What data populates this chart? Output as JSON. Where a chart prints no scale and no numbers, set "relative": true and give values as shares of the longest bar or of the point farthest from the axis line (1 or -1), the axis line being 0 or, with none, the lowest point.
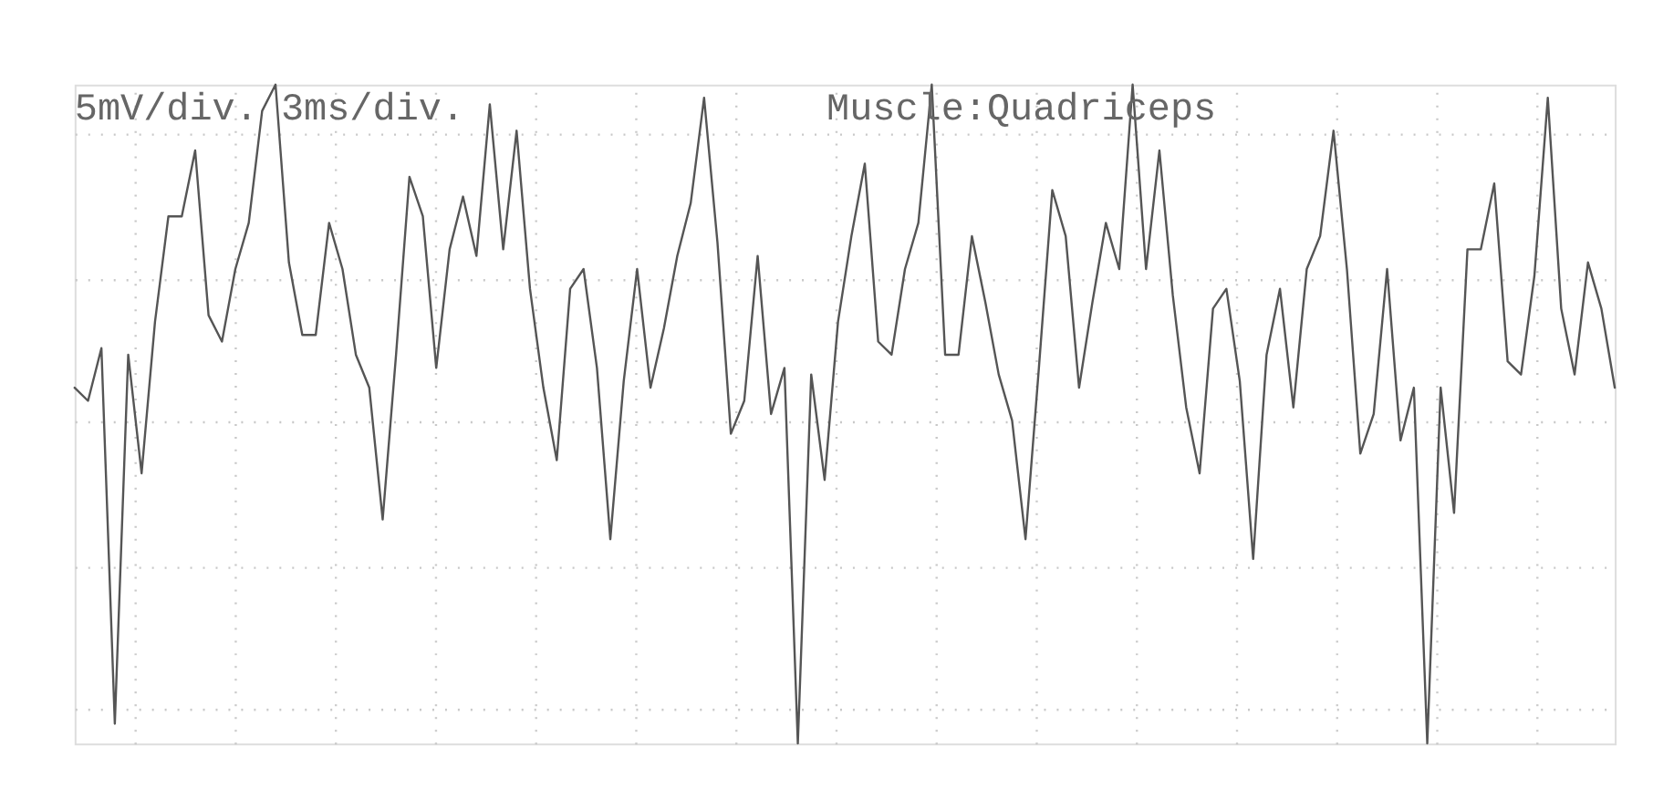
{
  "chart_data": {
    "type": "line",
    "relative": true,
    "color": "#555555",
    "line_style": "solid",
    "marker": "none",
    "grid": true,
    "tick_labels": false,
    "legend": false,
    "annotations": [
      "5mV/div. 3ms/div.",
      "Muscle:Quadriceps"
    ],
    "categories": [
      null,
      null,
      null,
      null,
      null,
      null,
      null,
      null,
      null,
      null,
      null,
      null,
      null,
      null,
      null,
      null,
      null,
      null,
      null,
      null,
      null,
      null,
      null,
      null,
      null,
      null,
      null,
      null,
      null,
      null,
      null,
      null,
      null,
      null,
      null,
      null,
      null,
      null,
      null,
      null,
      null,
      null,
      null,
      null,
      null,
      null,
      null,
      null,
      null,
      null,
      null,
      null,
      null,
      null,
      null,
      null,
      null,
      null,
      null,
      null,
      null,
      null,
      null,
      null,
      null,
      null,
      null,
      null,
      null,
      null,
      null,
      null,
      null,
      null,
      null,
      null,
      null,
      null,
      null,
      null,
      null,
      null,
      null,
      null,
      null,
      null,
      null,
      null,
      null,
      null,
      null,
      null,
      null,
      null,
      null,
      null,
      null,
      null,
      null,
      null,
      null,
      null,
      null,
      null,
      null,
      null,
      null,
      null,
      null,
      null,
      null,
      null,
      null,
      null,
      null,
      null
    ],
    "values": [
      0.54,
      0.52,
      0.6,
      0.03,
      0.59,
      0.41,
      0.64,
      0.8,
      0.8,
      0.9,
      0.65,
      0.61,
      0.72,
      0.79,
      0.96,
      1,
      0.73,
      0.62,
      0.62,
      0.79,
      0.72,
      0.59,
      0.54,
      0.34,
      0.59,
      0.86,
      0.8,
      0.57,
      0.75,
      0.83,
      0.74,
      0.97,
      0.75,
      0.93,
      0.69,
      0.54,
      0.43,
      0.69,
      0.72,
      0.57,
      0.31,
      0.55,
      0.72,
      0.54,
      0.63,
      0.74,
      0.82,
      0.98,
      0.76,
      0.47,
      0.52,
      0.74,
      0.5,
      0.57,
      0.0,
      0.56,
      0.4,
      0.64,
      0.77,
      0.88,
      0.61,
      0.59,
      0.72,
      0.79,
      1,
      0.59,
      0.59,
      0.77,
      0.67,
      0.56,
      0.49,
      0.31,
      0.57,
      0.84,
      0.77,
      0.54,
      0.67,
      0.79,
      0.72,
      1,
      0.72,
      0.9,
      0.68,
      0.51,
      0.41,
      0.66,
      0.69,
      0.55,
      0.28,
      0.59,
      0.69,
      0.51,
      0.72,
      0.77,
      0.93,
      0.72,
      0.44,
      0.5,
      0.72,
      0.46,
      0.54,
      0.0,
      0.54,
      0.35,
      0.75,
      0.75,
      0.85,
      0.58,
      0.56,
      0.71,
      0.98,
      0.66,
      0.56,
      0.73,
      0.66,
      0.54
    ]
  }
}
